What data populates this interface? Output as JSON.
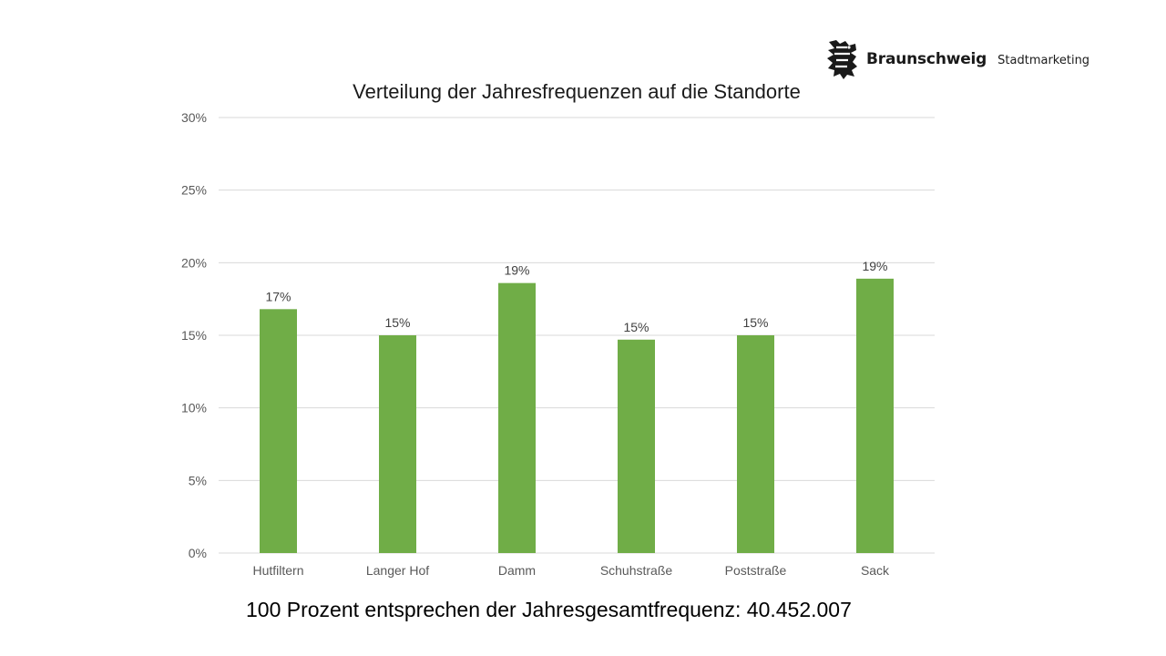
{
  "logo": {
    "name": "Braunschweig",
    "subtitle": "Stadtmarketing"
  },
  "footnote": "100 Prozent entsprechen der Jahresgesamtfrequenz: 40.452.007",
  "colors": {
    "bar": "#70ad47",
    "grid": "#d9d9d9",
    "tick_text": "#595959"
  },
  "chart_data": {
    "type": "bar",
    "title": "Verteilung der Jahresfrequenzen auf die Standorte",
    "xlabel": "",
    "ylabel": "",
    "categories": [
      "Hutfiltern",
      "Langer Hof",
      "Damm",
      "Schuhstraße",
      "Poststraße",
      "Sack"
    ],
    "values": [
      16.8,
      15.0,
      18.6,
      14.7,
      15.0,
      18.9
    ],
    "data_labels": [
      "17%",
      "15%",
      "19%",
      "15%",
      "15%",
      "19%"
    ],
    "ylim": [
      0,
      30
    ],
    "yticks": [
      0,
      5,
      10,
      15,
      20,
      25,
      30
    ],
    "ytick_labels": [
      "0%",
      "5%",
      "10%",
      "15%",
      "20%",
      "25%",
      "30%"
    ],
    "grid": true,
    "legend": "none"
  }
}
